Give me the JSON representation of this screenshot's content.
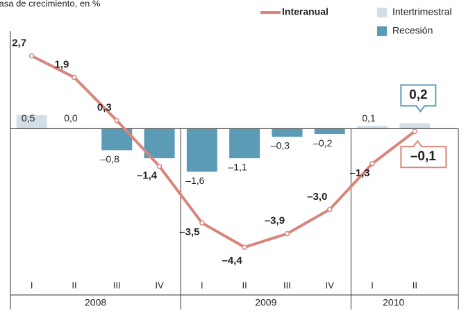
{
  "chart_data": {
    "type": "bar",
    "title": "Tasa de crecimiento, en %",
    "categories": [
      "I",
      "II",
      "III",
      "IV",
      "I",
      "II",
      "III",
      "IV",
      "I",
      "II"
    ],
    "years": [
      "2008",
      "2009",
      "2010"
    ],
    "ylim": [
      -5.4,
      4.0
    ],
    "series": [
      {
        "name": "Intertrimestral",
        "type": "bar",
        "color": "#d3dee7",
        "negative_name": "Recesión",
        "negative_color": "#5b9bb5",
        "values": [
          0.5,
          0.0,
          -0.8,
          -1.1,
          -1.6,
          -1.1,
          -0.3,
          -0.2,
          0.1,
          0.2
        ],
        "value_labels": [
          "0,5",
          "0,0",
          "–0,8",
          null,
          "–1,6",
          "–1,1",
          "–0,3",
          "–0,2",
          "0,1",
          "0,2"
        ]
      },
      {
        "name": "Interanual",
        "type": "line",
        "color": "#d9857b",
        "values": [
          2.7,
          1.9,
          0.3,
          -1.4,
          -3.5,
          -4.4,
          -3.9,
          -3.0,
          -1.3,
          -0.1
        ],
        "value_labels": [
          "2,7",
          "1,9",
          "0,3",
          "–1,4",
          "–3,5",
          "–4,4",
          "–3,9",
          "–3,0",
          "–1,3",
          "–0,1"
        ]
      }
    ]
  }
}
